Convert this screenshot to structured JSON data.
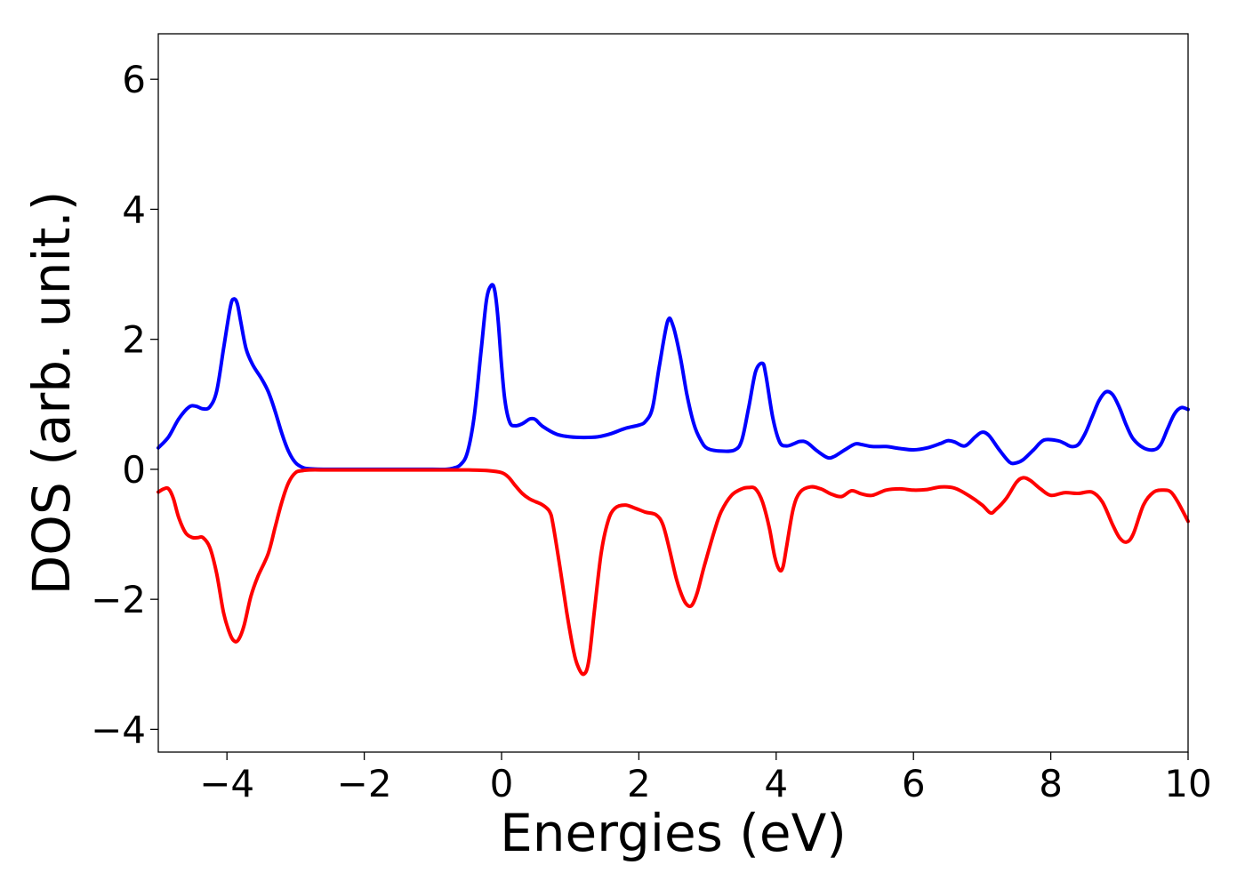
{
  "chart_data": {
    "type": "line",
    "title": "",
    "xlabel": "Energies (eV)",
    "ylabel": "DOS (arb. unit.)",
    "xlim": [
      -5,
      10
    ],
    "ylim": [
      -4.35,
      6.7
    ],
    "xticks": [
      -4,
      -2,
      0,
      2,
      4,
      6,
      8,
      10
    ],
    "xtick_labels": [
      "−4",
      "−2",
      "0",
      "2",
      "4",
      "6",
      "8",
      "10"
    ],
    "yticks": [
      -4,
      -2,
      0,
      2,
      4,
      6
    ],
    "ytick_labels": [
      "−4",
      "−2",
      "0",
      "2",
      "4",
      "6"
    ],
    "grid": false,
    "legend": "none",
    "series": [
      {
        "color": "#0000ff",
        "x": [
          -5.0,
          -4.85,
          -4.7,
          -4.55,
          -4.45,
          -4.35,
          -4.25,
          -4.15,
          -4.05,
          -3.95,
          -3.9,
          -3.85,
          -3.8,
          -3.72,
          -3.62,
          -3.5,
          -3.4,
          -3.3,
          -3.2,
          -3.1,
          -3.0,
          -2.9,
          -2.8,
          -2.5,
          -2.0,
          -1.5,
          -1.0,
          -0.8,
          -0.7,
          -0.6,
          -0.5,
          -0.4,
          -0.3,
          -0.22,
          -0.15,
          -0.1,
          -0.05,
          0.0,
          0.05,
          0.12,
          0.2,
          0.3,
          0.4,
          0.45,
          0.5,
          0.6,
          0.8,
          1.0,
          1.2,
          1.4,
          1.6,
          1.8,
          2.0,
          2.1,
          2.2,
          2.3,
          2.42,
          2.5,
          2.6,
          2.7,
          2.8,
          2.9,
          3.0,
          3.2,
          3.4,
          3.5,
          3.6,
          3.7,
          3.8,
          3.85,
          3.95,
          4.05,
          4.15,
          4.25,
          4.35,
          4.45,
          4.6,
          4.75,
          4.85,
          5.0,
          5.15,
          5.25,
          5.4,
          5.6,
          5.8,
          6.0,
          6.2,
          6.4,
          6.5,
          6.6,
          6.75,
          6.9,
          7.0,
          7.1,
          7.25,
          7.4,
          7.5,
          7.6,
          7.75,
          7.9,
          8.1,
          8.2,
          8.3,
          8.4,
          8.5,
          8.6,
          8.7,
          8.8,
          8.9,
          9.0,
          9.1,
          9.2,
          9.35,
          9.5,
          9.6,
          9.7,
          9.8,
          9.9,
          10.0
        ],
        "y": [
          0.33,
          0.5,
          0.78,
          0.96,
          0.97,
          0.93,
          0.96,
          1.2,
          1.85,
          2.5,
          2.62,
          2.55,
          2.28,
          1.85,
          1.6,
          1.4,
          1.2,
          0.9,
          0.55,
          0.27,
          0.1,
          0.03,
          0.01,
          0.0,
          0.0,
          0.0,
          0.0,
          0.0,
          0.02,
          0.07,
          0.25,
          0.8,
          1.8,
          2.6,
          2.83,
          2.75,
          2.3,
          1.6,
          1.05,
          0.72,
          0.67,
          0.7,
          0.77,
          0.78,
          0.76,
          0.66,
          0.54,
          0.5,
          0.49,
          0.5,
          0.55,
          0.63,
          0.68,
          0.74,
          0.95,
          1.6,
          2.28,
          2.2,
          1.75,
          1.15,
          0.7,
          0.45,
          0.32,
          0.28,
          0.3,
          0.45,
          0.95,
          1.5,
          1.63,
          1.45,
          0.8,
          0.42,
          0.36,
          0.39,
          0.43,
          0.41,
          0.28,
          0.18,
          0.2,
          0.3,
          0.39,
          0.38,
          0.35,
          0.35,
          0.32,
          0.3,
          0.33,
          0.4,
          0.44,
          0.42,
          0.36,
          0.5,
          0.57,
          0.52,
          0.3,
          0.11,
          0.1,
          0.15,
          0.3,
          0.45,
          0.44,
          0.4,
          0.35,
          0.38,
          0.55,
          0.8,
          1.05,
          1.19,
          1.15,
          0.95,
          0.68,
          0.47,
          0.33,
          0.3,
          0.38,
          0.62,
          0.85,
          0.95,
          0.92
        ]
      },
      {
        "color": "#ff0000",
        "x": [
          -5.0,
          -4.92,
          -4.85,
          -4.78,
          -4.7,
          -4.6,
          -4.5,
          -4.42,
          -4.35,
          -4.25,
          -4.15,
          -4.05,
          -3.95,
          -3.88,
          -3.82,
          -3.75,
          -3.65,
          -3.55,
          -3.4,
          -3.3,
          -3.2,
          -3.1,
          -3.0,
          -2.9,
          -2.8,
          -2.5,
          -2.0,
          -1.5,
          -1.0,
          -0.5,
          -0.2,
          0.0,
          0.1,
          0.2,
          0.3,
          0.4,
          0.5,
          0.6,
          0.7,
          0.75,
          0.85,
          0.95,
          1.05,
          1.12,
          1.2,
          1.27,
          1.35,
          1.45,
          1.55,
          1.65,
          1.8,
          1.95,
          2.1,
          2.25,
          2.35,
          2.45,
          2.55,
          2.65,
          2.72,
          2.78,
          2.85,
          2.95,
          3.1,
          3.2,
          3.35,
          3.5,
          3.6,
          3.7,
          3.8,
          3.9,
          3.98,
          4.05,
          4.1,
          4.15,
          4.25,
          4.35,
          4.5,
          4.65,
          4.8,
          4.95,
          5.1,
          5.25,
          5.4,
          5.6,
          5.8,
          6.0,
          6.2,
          6.4,
          6.6,
          6.8,
          7.0,
          7.12,
          7.2,
          7.35,
          7.5,
          7.6,
          7.7,
          7.85,
          8.0,
          8.2,
          8.4,
          8.6,
          8.75,
          8.9,
          9.0,
          9.1,
          9.2,
          9.35,
          9.5,
          9.65,
          9.75,
          9.85,
          10.0
        ],
        "y": [
          -0.35,
          -0.3,
          -0.3,
          -0.45,
          -0.75,
          -0.98,
          -1.05,
          -1.05,
          -1.05,
          -1.2,
          -1.6,
          -2.2,
          -2.55,
          -2.65,
          -2.6,
          -2.4,
          -1.95,
          -1.65,
          -1.3,
          -0.9,
          -0.5,
          -0.2,
          -0.05,
          -0.02,
          -0.01,
          -0.01,
          -0.01,
          -0.01,
          -0.01,
          -0.01,
          -0.02,
          -0.05,
          -0.12,
          -0.25,
          -0.37,
          -0.45,
          -0.5,
          -0.55,
          -0.65,
          -0.85,
          -1.5,
          -2.2,
          -2.8,
          -3.05,
          -3.15,
          -2.95,
          -2.2,
          -1.3,
          -0.8,
          -0.6,
          -0.55,
          -0.6,
          -0.66,
          -0.7,
          -0.85,
          -1.25,
          -1.7,
          -2.0,
          -2.1,
          -2.08,
          -1.9,
          -1.5,
          -0.95,
          -0.65,
          -0.4,
          -0.3,
          -0.28,
          -0.3,
          -0.5,
          -0.9,
          -1.35,
          -1.55,
          -1.5,
          -1.2,
          -0.6,
          -0.35,
          -0.27,
          -0.3,
          -0.38,
          -0.42,
          -0.33,
          -0.38,
          -0.4,
          -0.32,
          -0.3,
          -0.32,
          -0.31,
          -0.27,
          -0.29,
          -0.4,
          -0.55,
          -0.67,
          -0.62,
          -0.45,
          -0.2,
          -0.13,
          -0.17,
          -0.3,
          -0.4,
          -0.36,
          -0.37,
          -0.35,
          -0.5,
          -0.85,
          -1.05,
          -1.12,
          -1.0,
          -0.55,
          -0.35,
          -0.32,
          -0.35,
          -0.5,
          -0.8
        ]
      }
    ]
  }
}
